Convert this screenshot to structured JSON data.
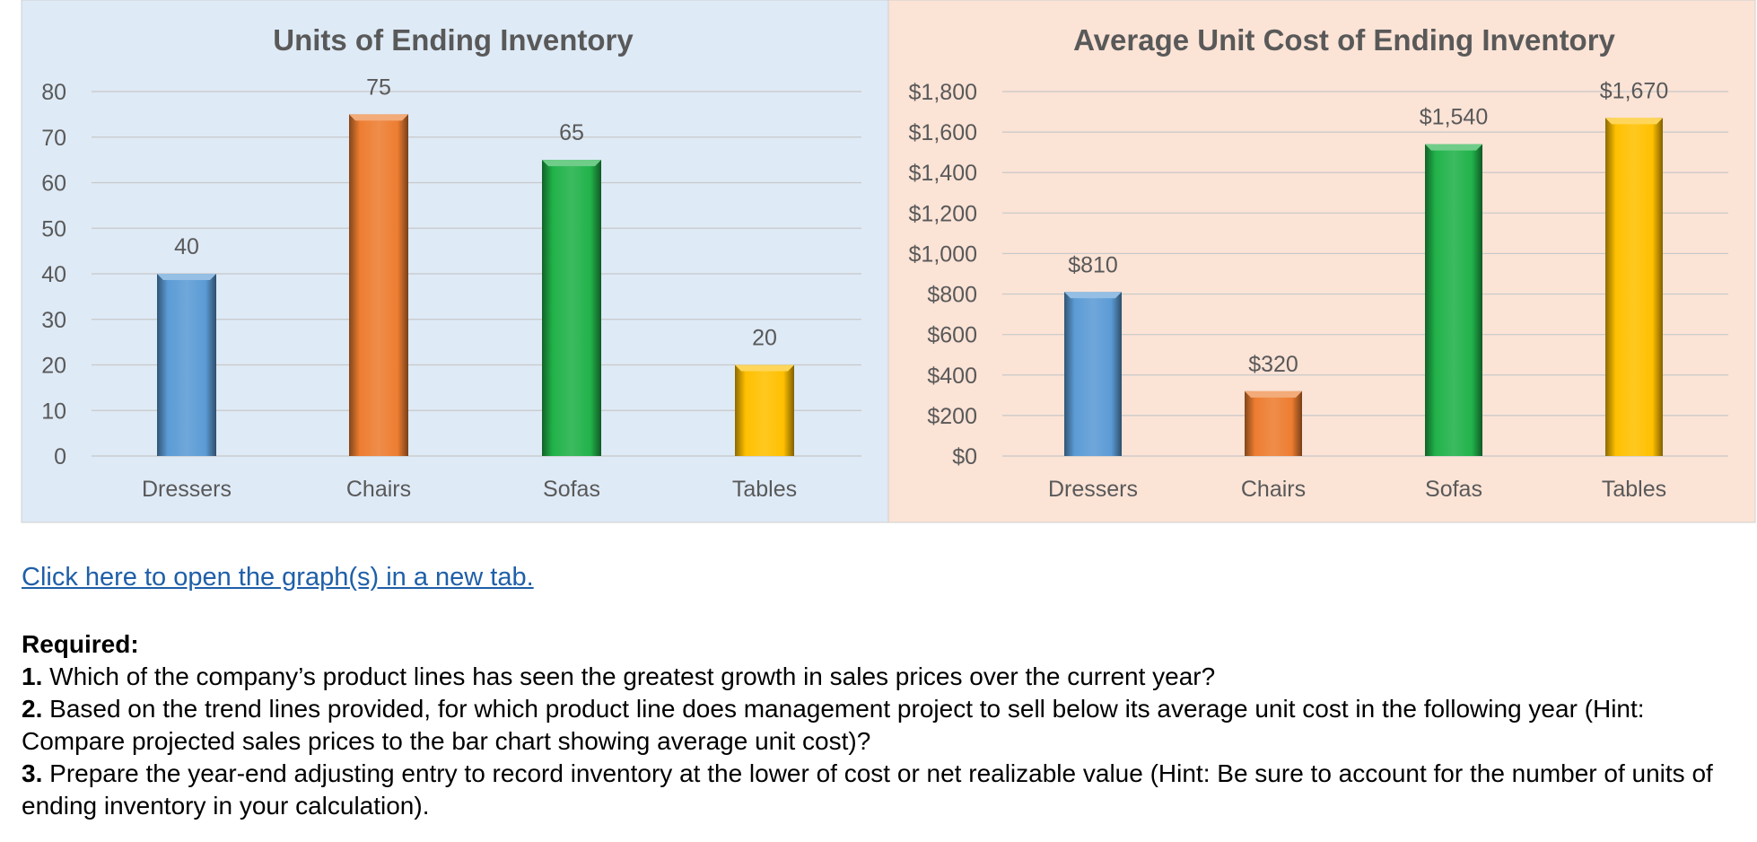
{
  "chart_data": [
    {
      "type": "bar",
      "title": "Units of Ending Inventory",
      "categories": [
        "Dressers",
        "Chairs",
        "Sofas",
        "Tables"
      ],
      "values": [
        40,
        75,
        65,
        20
      ],
      "value_labels": [
        "40",
        "75",
        "65",
        "20"
      ],
      "ylim": [
        0,
        80
      ],
      "yticks": [
        0,
        10,
        20,
        30,
        40,
        50,
        60,
        70,
        80
      ],
      "ytick_labels": [
        "0",
        "10",
        "20",
        "30",
        "40",
        "50",
        "60",
        "70",
        "80"
      ],
      "colors": [
        "#5b9bd5",
        "#ed7d31",
        "#21b24a",
        "#ffc000"
      ],
      "background": "#deeaf6",
      "xlabel": "",
      "ylabel": "",
      "grid": true
    },
    {
      "type": "bar",
      "title": "Average Unit Cost of Ending Inventory",
      "categories": [
        "Dressers",
        "Chairs",
        "Sofas",
        "Tables"
      ],
      "values": [
        810,
        320,
        1540,
        1670
      ],
      "value_labels": [
        "$810",
        "$320",
        "$1,540",
        "$1,670"
      ],
      "ylim": [
        0,
        1800
      ],
      "yticks": [
        0,
        200,
        400,
        600,
        800,
        1000,
        1200,
        1400,
        1600,
        1800
      ],
      "ytick_labels": [
        "$0",
        "$200",
        "$400",
        "$600",
        "$800",
        "$1,000",
        "$1,200",
        "$1,400",
        "$1,600",
        "$1,800"
      ],
      "colors": [
        "#5b9bd5",
        "#ed7d31",
        "#21b24a",
        "#ffc000"
      ],
      "background": "#fbe3d6",
      "xlabel": "",
      "ylabel": "",
      "grid": true
    }
  ],
  "link_text": "Click here to open the graph(s) in a new tab.",
  "required": {
    "heading": "Required:",
    "items": [
      {
        "num": "1.",
        "text": " Which of the company’s product lines has seen the greatest growth in sales prices over the current year?"
      },
      {
        "num": "2.",
        "text": " Based on the trend lines provided, for which product line does management project to sell below its average unit cost in the following year (Hint: Compare projected sales prices to the bar chart showing average unit cost)?"
      },
      {
        "num": "3.",
        "text": " Prepare the year-end adjusting entry to record inventory at the lower of cost or net realizable value (Hint: Be sure to account for the number of units of ending inventory in your calculation)."
      }
    ]
  }
}
